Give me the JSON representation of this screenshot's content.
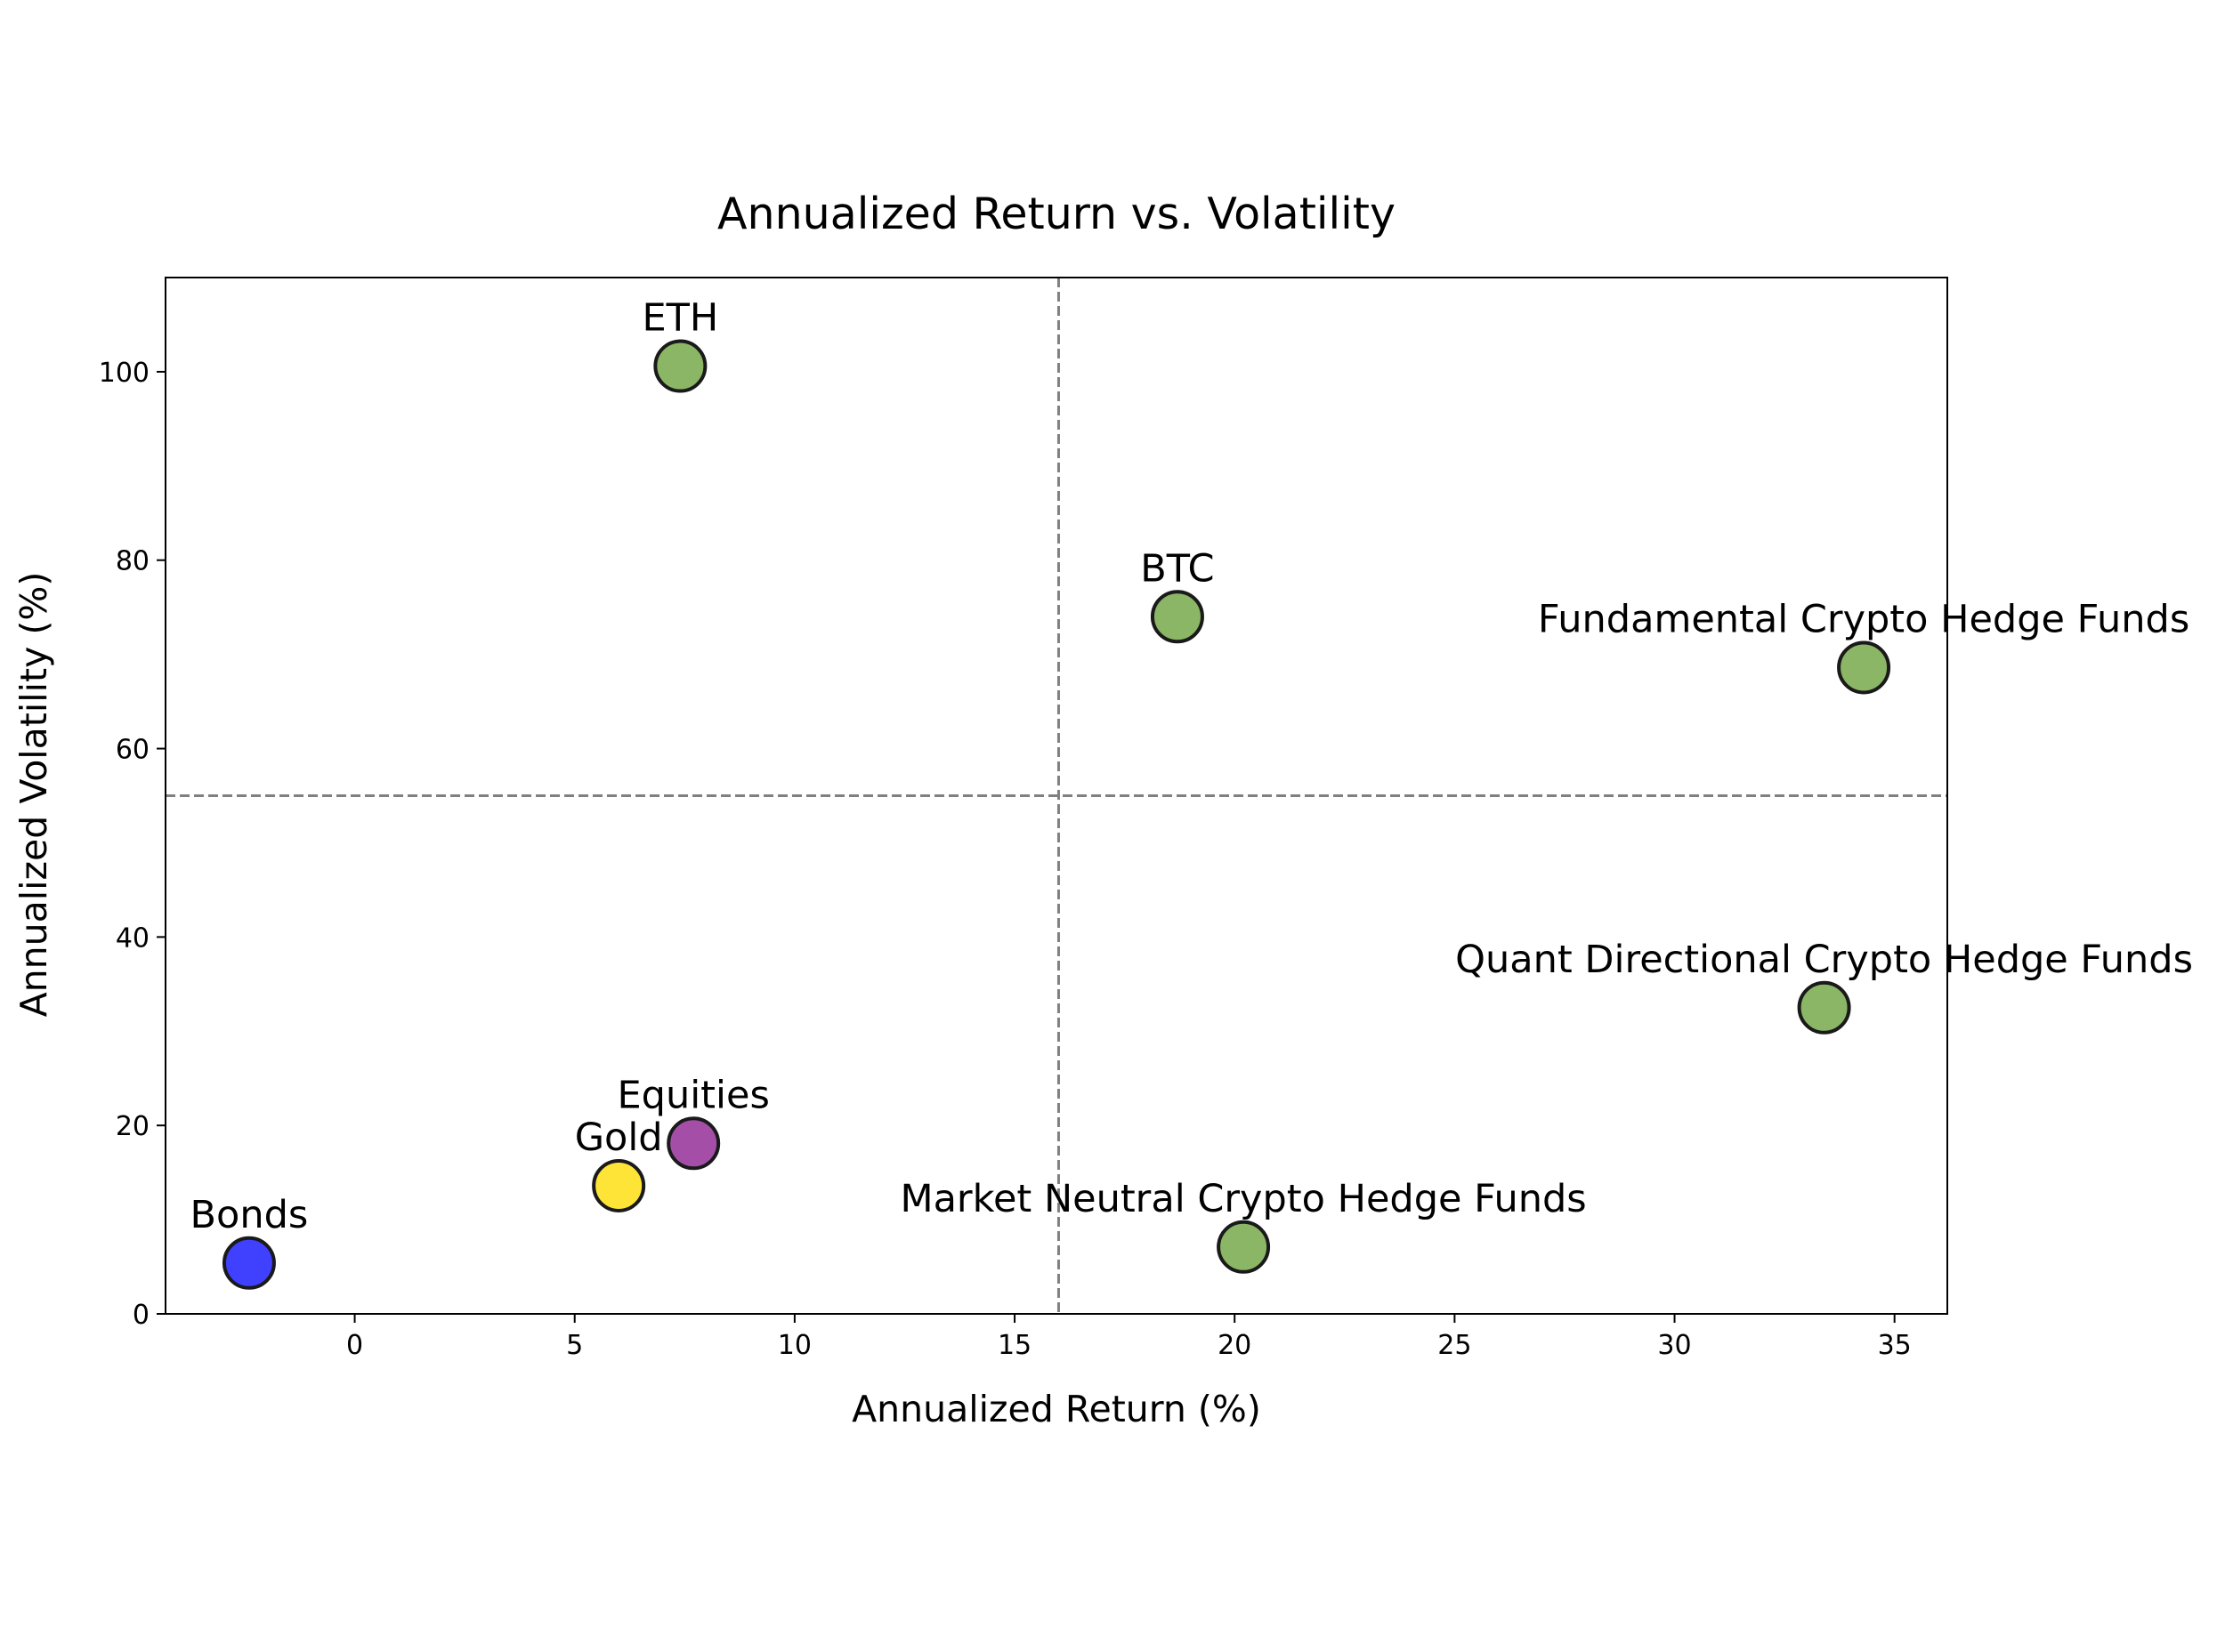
{
  "chart_data": {
    "type": "scatter",
    "title": "Annualized Return vs. Volatility",
    "xlabel": "Annualized Return (%)",
    "ylabel": "Annualized Volatility (%)",
    "xlim": [
      -4.3,
      36.2
    ],
    "ylim": [
      0,
      110
    ],
    "xticks": [
      0,
      5,
      10,
      15,
      20,
      25,
      30,
      35
    ],
    "yticks": [
      0,
      20,
      40,
      60,
      80,
      100
    ],
    "grid": false,
    "legend": "none",
    "reference_lines": {
      "x": 16.0,
      "y": 55.0,
      "style": "dashed",
      "color": "#808080"
    },
    "points": [
      {
        "label": "ETH",
        "x": 7.4,
        "y": 100.6,
        "color": "#6aa13a"
      },
      {
        "label": "BTC",
        "x": 18.7,
        "y": 74.0,
        "color": "#6aa13a"
      },
      {
        "label": "Fundamental Crypto Hedge Funds",
        "x": 34.3,
        "y": 68.6,
        "color": "#6aa13a"
      },
      {
        "label": "Quant Directional Crypto Hedge Funds",
        "x": 33.4,
        "y": 32.5,
        "color": "#6aa13a"
      },
      {
        "label": "Market Neutral Crypto Hedge Funds",
        "x": 20.2,
        "y": 7.1,
        "color": "#6aa13a"
      },
      {
        "label": "Equities",
        "x": 7.7,
        "y": 18.1,
        "color": "#8b1c8f"
      },
      {
        "label": "Gold",
        "x": 6.0,
        "y": 13.6,
        "color": "#ffdd00"
      },
      {
        "label": "Bonds",
        "x": -2.4,
        "y": 5.4,
        "color": "#0a0aff"
      }
    ]
  }
}
